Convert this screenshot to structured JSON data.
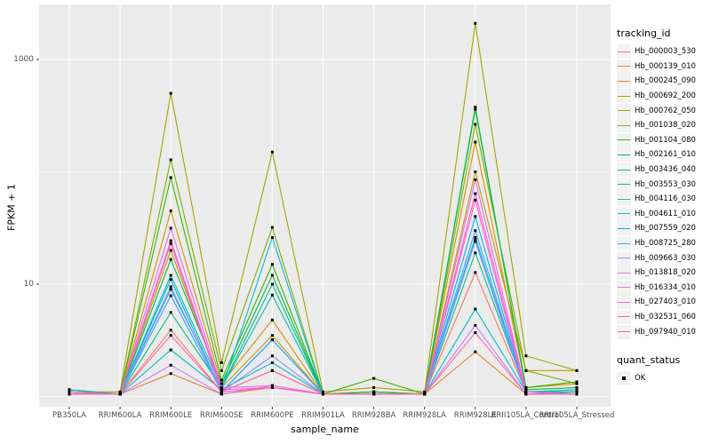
{
  "figure": {
    "background": "#FFFFFF",
    "panel_background": "#EBEBEB",
    "grid_color": "#FFFFFF",
    "tick_label_color": "#4D4D4D",
    "point_color": "#000000"
  },
  "axes": {
    "y_title": "FPKM + 1",
    "x_title": "sample_name"
  },
  "legend": {
    "tracking_title": "tracking_id",
    "quant_title": "quant_status",
    "quant_ok_label": "OK"
  },
  "chart_data": {
    "type": "line",
    "title": "",
    "xlabel": "sample_name",
    "ylabel": "FPKM + 1",
    "y_scale": "log10",
    "y_ticks": [
      1000,
      10
    ],
    "y_minor_ticks": [
      100,
      1
    ],
    "ylim": [
      1,
      2500
    ],
    "grid": true,
    "legend_position": "right",
    "point_shape": "filled-square",
    "categories": [
      "PB350LA",
      "RRIM600LA",
      "RRIM600LE",
      "RRIM600SE",
      "RRIM600PE",
      "RRIM901LA",
      "RRIM928BA",
      "RRIM928LA",
      "RRIM928LE",
      "RRII105LA_Control",
      "RRII105LA_Stressed"
    ],
    "series": [
      {
        "name": "Hb_000003_530",
        "color": "#F8766D",
        "values": [
          1.1,
          1.05,
          3.9,
          1.1,
          1.7,
          1.05,
          1.05,
          1.05,
          12.7,
          1.1,
          1.05
        ]
      },
      {
        "name": "Hb_000139_010",
        "color": "#EA8331",
        "values": [
          1.05,
          1.05,
          1.6,
          1.05,
          1.2,
          1.05,
          1.05,
          1.05,
          2.5,
          1.05,
          1.05
        ]
      },
      {
        "name": "Hb_000245_090",
        "color": "#D89000",
        "values": [
          1.05,
          1.05,
          45,
          1.3,
          4.8,
          1.05,
          1.1,
          1.05,
          184,
          1.2,
          1.3
        ]
      },
      {
        "name": "Hb_000692_200",
        "color": "#C09B00",
        "values": [
          1.1,
          1.05,
          20,
          1.2,
          3.5,
          1.05,
          1.1,
          1.05,
          100,
          1.7,
          1.7
        ]
      },
      {
        "name": "Hb_000762_050",
        "color": "#A3A500",
        "values": [
          1.1,
          1.1,
          500,
          2.0,
          150,
          1.1,
          1.2,
          1.1,
          2100,
          2.3,
          1.7
        ]
      },
      {
        "name": "Hb_001038_020",
        "color": "#7CAE00",
        "values": [
          1.1,
          1.05,
          128,
          1.7,
          32,
          1.05,
          1.1,
          1.05,
          265,
          1.7,
          1.3
        ]
      },
      {
        "name": "Hb_001104_080",
        "color": "#39B600",
        "values": [
          1.1,
          1.05,
          89,
          1.4,
          15,
          1.05,
          1.45,
          1.05,
          360,
          1.2,
          1.35
        ]
      },
      {
        "name": "Hb_002161_010",
        "color": "#00BB4E",
        "values": [
          1.1,
          1.05,
          16.6,
          1.3,
          12,
          1.05,
          1.1,
          1.05,
          377,
          1.15,
          1.2
        ]
      },
      {
        "name": "Hb_003436_040",
        "color": "#00C087",
        "values": [
          1.15,
          1.05,
          5.6,
          1.2,
          10,
          1.05,
          1.05,
          1.05,
          19,
          1.1,
          1.15
        ]
      },
      {
        "name": "Hb_003553_030",
        "color": "#00C0AF",
        "values": [
          1.1,
          1.05,
          12,
          1.2,
          8,
          1.05,
          1.05,
          1.05,
          25,
          1.1,
          1.1
        ]
      },
      {
        "name": "Hb_004116_030",
        "color": "#00BFC4",
        "values": [
          1.15,
          1.05,
          2.6,
          1.15,
          2.0,
          1.05,
          1.05,
          1.05,
          6.0,
          1.1,
          1.1
        ]
      },
      {
        "name": "Hb_004611_010",
        "color": "#00BAE0",
        "values": [
          1.1,
          1.05,
          9.0,
          1.15,
          26,
          1.05,
          1.05,
          1.05,
          26,
          1.05,
          1.1
        ]
      },
      {
        "name": "Hb_007559_020",
        "color": "#00B0F6",
        "values": [
          1.05,
          1.05,
          11,
          1.1,
          3.2,
          1.05,
          1.05,
          1.05,
          40,
          1.05,
          1.05
        ]
      },
      {
        "name": "Hb_008725_280",
        "color": "#35A2FF",
        "values": [
          1.05,
          1.05,
          7.9,
          1.1,
          3.2,
          1.05,
          1.05,
          1.05,
          30,
          1.05,
          1.05
        ]
      },
      {
        "name": "Hb_009663_030",
        "color": "#9590FF",
        "values": [
          1.05,
          1.05,
          9.5,
          1.1,
          2.3,
          1.05,
          1.05,
          1.05,
          24,
          1.05,
          1.05
        ]
      },
      {
        "name": "Hb_013818_020",
        "color": "#C77CFF",
        "values": [
          1.05,
          1.05,
          1.9,
          1.05,
          1.25,
          1.05,
          1.05,
          1.05,
          4.3,
          1.05,
          1.05
        ]
      },
      {
        "name": "Hb_016334_010",
        "color": "#E76BF3",
        "values": [
          1.05,
          1.05,
          31.5,
          1.2,
          1.25,
          1.05,
          1.05,
          1.05,
          85,
          1.1,
          1.05
        ]
      },
      {
        "name": "Hb_027403_010",
        "color": "#FA62DB",
        "values": [
          1.05,
          1.05,
          24.4,
          1.15,
          1.2,
          1.05,
          1.05,
          1.05,
          64,
          1.1,
          1.05
        ]
      },
      {
        "name": "Hb_032531_060",
        "color": "#FF62BC",
        "values": [
          1.05,
          1.05,
          23,
          1.1,
          1.2,
          1.05,
          1.05,
          1.05,
          56,
          1.05,
          1.05
        ]
      },
      {
        "name": "Hb_097940_010",
        "color": "#FF6A98",
        "values": [
          1.1,
          1.05,
          3.5,
          1.1,
          1.7,
          1.05,
          1.05,
          1.05,
          3.7,
          1.05,
          1.05
        ]
      }
    ],
    "quant_status": {
      "label": "OK",
      "marker": "filled-square",
      "color": "#000000"
    }
  }
}
